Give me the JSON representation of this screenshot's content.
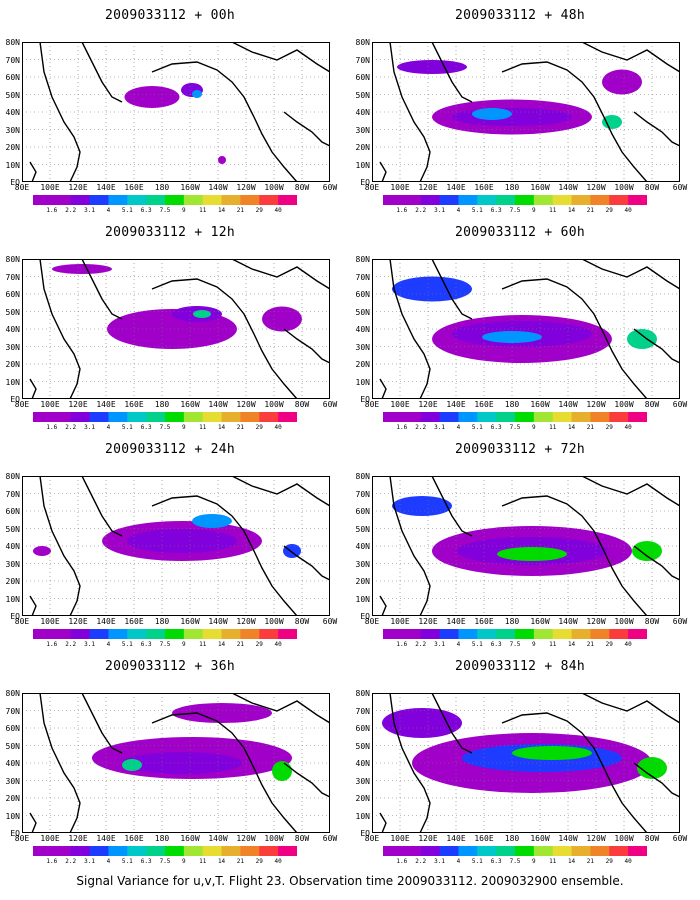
{
  "panels": [
    {
      "title": "2009033112 + 00h"
    },
    {
      "title": "2009033112 + 48h"
    },
    {
      "title": "2009033112 + 12h"
    },
    {
      "title": "2009033112 + 60h"
    },
    {
      "title": "2009033112 + 24h"
    },
    {
      "title": "2009033112 + 72h"
    },
    {
      "title": "2009033112 + 36h"
    },
    {
      "title": "2009033112 + 84h"
    }
  ],
  "lat_labels": [
    "80N",
    "70N",
    "60N",
    "50N",
    "40N",
    "30N",
    "20N",
    "10N",
    "EQ"
  ],
  "lon_labels": [
    "80E",
    "100E",
    "120E",
    "140E",
    "160E",
    "180",
    "160W",
    "140W",
    "120W",
    "100W",
    "80W",
    "60W"
  ],
  "colorbar": {
    "labels": [
      "1.6",
      "2.2",
      "3.1",
      "4",
      "5.1",
      "6.3",
      "7.5",
      "9",
      "11",
      "14",
      "21",
      "29",
      "40"
    ],
    "colors": [
      "#a000c8",
      "#8200dc",
      "#1e3cff",
      "#0096ff",
      "#00c8c8",
      "#00d28c",
      "#00dc00",
      "#a0e632",
      "#e6dc32",
      "#e6af2d",
      "#f08228",
      "#fa3c3c",
      "#f00082"
    ]
  },
  "footer": "Signal Variance for u,v,T. Flight 23. Observation time 2009033112. 2009032900 ensemble."
}
